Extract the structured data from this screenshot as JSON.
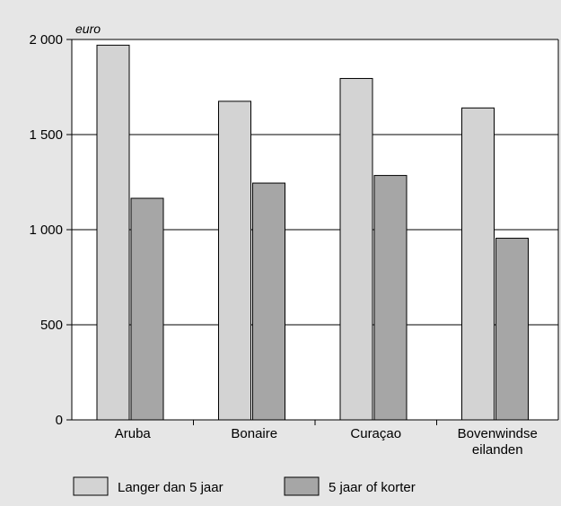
{
  "chart_data": {
    "type": "bar",
    "unit_label": "euro",
    "categories": [
      [
        "Aruba"
      ],
      [
        "Bonaire"
      ],
      [
        "Curaçao"
      ],
      [
        "Bovenwindse",
        "eilanden"
      ]
    ],
    "series": [
      {
        "name": "Langer dan 5 jaar",
        "values": [
          1970,
          1675,
          1795,
          1640
        ]
      },
      {
        "name": "5 jaar of korter",
        "values": [
          1165,
          1245,
          1285,
          955
        ]
      }
    ],
    "ylim": [
      0,
      2000
    ],
    "yticks": [
      {
        "value": 0,
        "label": "0"
      },
      {
        "value": 500,
        "label": "500"
      },
      {
        "value": 1000,
        "label": "1 000"
      },
      {
        "value": 1500,
        "label": "1 500"
      },
      {
        "value": 2000,
        "label": "2 000"
      }
    ],
    "grid": true,
    "legend_position": "bottom",
    "colors": {
      "background": "#e6e6e6",
      "plot_background": "#ffffff",
      "series": [
        "#d3d3d3",
        "#a6a6a6"
      ],
      "stroke": "#000000"
    }
  }
}
